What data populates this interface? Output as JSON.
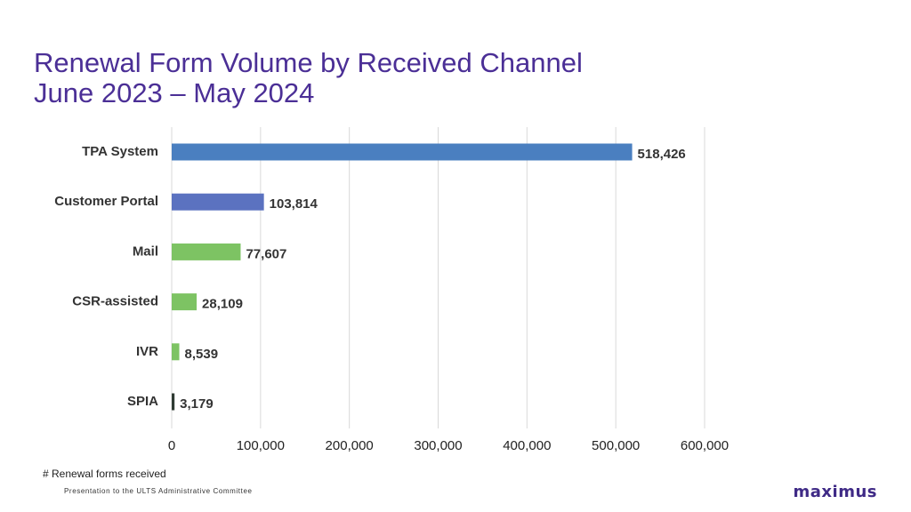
{
  "header": {
    "title_line1": "Renewal Form Volume by Received Channel",
    "title_line2": "June 2023 – May 2024"
  },
  "footer": {
    "footnote": "# Renewal forms received",
    "presentation": "Presentation to the ULTS Administrative Committee",
    "logo": "maximus"
  },
  "colors": {
    "title": "#4b2f96",
    "bar_blue": "#4a7fc0",
    "bar_purple_blue": "#5b72c0",
    "bar_green": "#7dc363",
    "bar_dark": "#2f3b33",
    "grid": "#d9d9d9"
  },
  "chart_data": {
    "type": "bar",
    "orientation": "horizontal",
    "categories": [
      "TPA System",
      "Customer Portal",
      "Mail",
      "CSR-assisted",
      "IVR",
      "SPIA"
    ],
    "values": [
      518426,
      103814,
      77607,
      28109,
      8539,
      3179
    ],
    "data_labels": [
      "518,426",
      "103,814",
      "77,607",
      "28,109",
      "8,539",
      "3,179"
    ],
    "bar_colors": [
      "#4a7fc0",
      "#5b72c0",
      "#7dc363",
      "#7dc363",
      "#7dc363",
      "#2f3b33"
    ],
    "xlim": [
      0,
      600000
    ],
    "x_ticks": [
      0,
      100000,
      200000,
      300000,
      400000,
      500000,
      600000
    ],
    "x_tick_labels": [
      "0",
      "100,000",
      "200,000",
      "300,000",
      "400,000",
      "500,000",
      "600,000"
    ],
    "grid": true,
    "legend": "none"
  }
}
